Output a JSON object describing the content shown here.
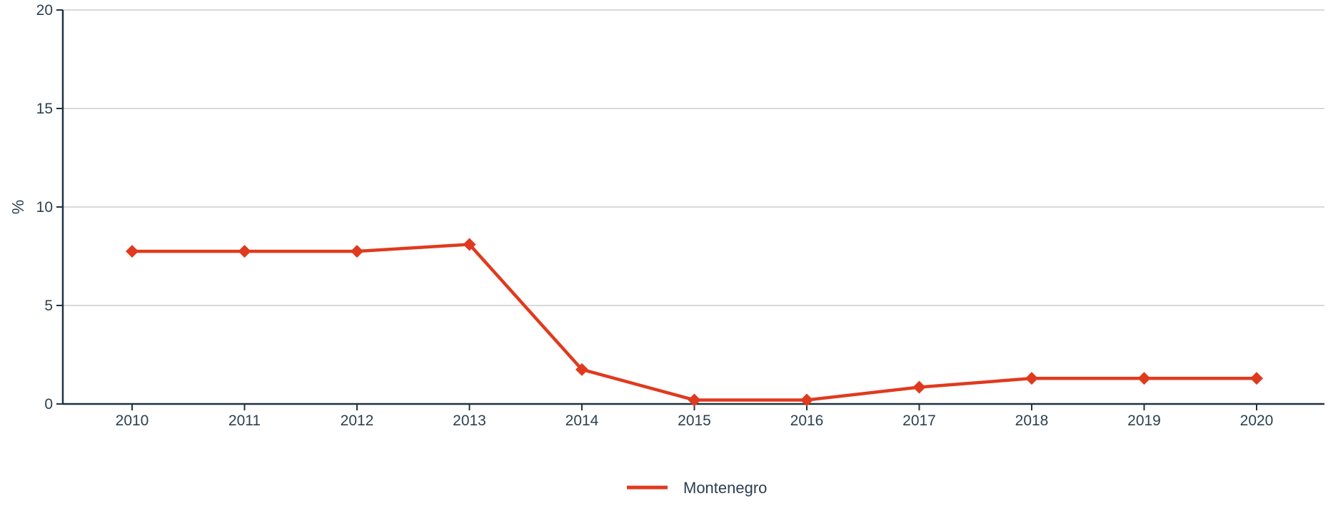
{
  "chart_data": {
    "type": "line",
    "x": [
      "2010",
      "2011",
      "2012",
      "2013",
      "2014",
      "2015",
      "2016",
      "2017",
      "2018",
      "2019",
      "2020"
    ],
    "series": [
      {
        "name": "Montenegro",
        "values": [
          7.75,
          7.75,
          7.75,
          8.1,
          1.75,
          0.2,
          0.2,
          0.85,
          1.3,
          1.3,
          1.3
        ],
        "color": "#e03a1e",
        "marker": "diamond"
      }
    ],
    "title": "",
    "xlabel": "",
    "ylabel": "%",
    "ylim": [
      0,
      20
    ],
    "yticks": [
      "0",
      "5",
      "10",
      "15",
      "20"
    ],
    "grid": "horizontal",
    "legend_position": "bottom-center",
    "colors": {
      "axis": "#1f3342",
      "grid": "#d9d9d9",
      "text": "#2d4050"
    }
  }
}
